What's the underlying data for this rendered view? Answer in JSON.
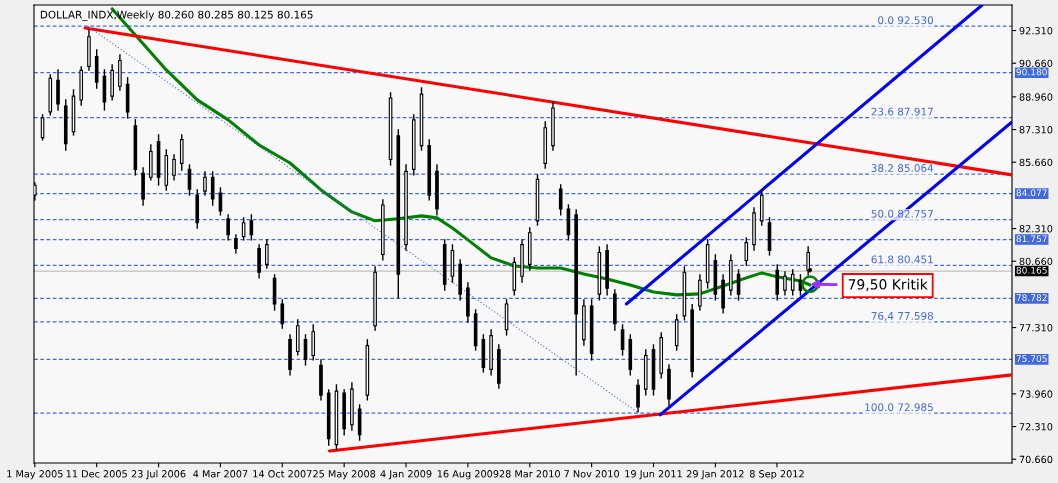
{
  "chart_data": {
    "type": "candlestick",
    "title": "DOLLAR_INDX,Weekly 80.260 80.285 80.125 80.165",
    "x": [
      "2005-05-01",
      "2005-05-29",
      "2005-06-26",
      "2005-07-24",
      "2005-08-21",
      "2005-09-18",
      "2005-10-16",
      "2005-11-13",
      "2005-12-11",
      "2006-01-08",
      "2006-02-05",
      "2006-03-05",
      "2006-04-02",
      "2006-04-30",
      "2006-05-28",
      "2006-06-25",
      "2006-07-23",
      "2006-08-20",
      "2006-09-17",
      "2006-10-15",
      "2006-11-12",
      "2006-12-10",
      "2007-01-07",
      "2007-02-04",
      "2007-03-04",
      "2007-04-01",
      "2007-04-29",
      "2007-05-27",
      "2007-06-24",
      "2007-07-22",
      "2007-08-19",
      "2007-09-16",
      "2007-10-14",
      "2007-11-11",
      "2007-12-09",
      "2008-01-06",
      "2008-02-03",
      "2008-03-02",
      "2008-03-30",
      "2008-04-27",
      "2008-05-25",
      "2008-06-22",
      "2008-07-20",
      "2008-08-17",
      "2008-09-14",
      "2008-10-12",
      "2008-11-09",
      "2008-12-07",
      "2009-01-04",
      "2009-02-01",
      "2009-03-01",
      "2009-03-29",
      "2009-04-26",
      "2009-05-24",
      "2009-06-21",
      "2009-07-19",
      "2009-08-16",
      "2009-09-13",
      "2009-10-11",
      "2009-11-08",
      "2009-12-06",
      "2010-01-03",
      "2010-01-31",
      "2010-02-28",
      "2010-03-28",
      "2010-04-25",
      "2010-05-23",
      "2010-06-20",
      "2010-07-18",
      "2010-08-15",
      "2010-09-12",
      "2010-10-10",
      "2010-11-07",
      "2010-12-05",
      "2011-01-02",
      "2011-01-30",
      "2011-02-27",
      "2011-03-27",
      "2011-04-24",
      "2011-05-22",
      "2011-06-19",
      "2011-07-17",
      "2011-08-14",
      "2011-09-11",
      "2011-10-09",
      "2011-11-06",
      "2011-12-04",
      "2012-01-01",
      "2012-01-29",
      "2012-02-26",
      "2012-03-25",
      "2012-04-22",
      "2012-05-20",
      "2012-06-17",
      "2012-07-15",
      "2012-08-12",
      "2012-09-09",
      "2012-10-07",
      "2012-11-04",
      "2012-12-02",
      "2012-12-30",
      "2013-01-06"
    ],
    "ohlc": [
      [
        84.0,
        84.61,
        83.76,
        84.5
      ],
      [
        86.9,
        88.05,
        86.79,
        87.9
      ],
      [
        88.2,
        90.07,
        88.05,
        89.9
      ],
      [
        89.8,
        90.32,
        88.3,
        88.6
      ],
      [
        88.5,
        88.81,
        86.28,
        86.6
      ],
      [
        87.2,
        89.31,
        87.04,
        89.0
      ],
      [
        88.8,
        90.47,
        88.55,
        90.3
      ],
      [
        90.5,
        92.34,
        90.32,
        92.0
      ],
      [
        91.0,
        91.33,
        89.41,
        89.7
      ],
      [
        90.0,
        90.32,
        88.3,
        88.7
      ],
      [
        89.0,
        90.57,
        88.81,
        90.3
      ],
      [
        89.5,
        91.08,
        89.31,
        90.8
      ],
      [
        89.6,
        89.92,
        87.9,
        88.2
      ],
      [
        87.5,
        87.8,
        85.02,
        85.3
      ],
      [
        85.1,
        85.37,
        83.5,
        83.8
      ],
      [
        84.9,
        86.53,
        84.77,
        86.2
      ],
      [
        86.7,
        87.04,
        84.51,
        84.9
      ],
      [
        84.5,
        86.28,
        84.26,
        86.0
      ],
      [
        85.0,
        86.03,
        84.77,
        85.8
      ],
      [
        85.6,
        87.04,
        85.27,
        86.8
      ],
      [
        85.3,
        85.52,
        84.01,
        84.3
      ],
      [
        84.0,
        84.26,
        82.34,
        82.6
      ],
      [
        84.2,
        85.17,
        84.01,
        84.9
      ],
      [
        84.9,
        85.17,
        83.5,
        83.8
      ],
      [
        84.1,
        84.36,
        83.0,
        83.2
      ],
      [
        82.8,
        83.0,
        81.74,
        82.0
      ],
      [
        81.8,
        81.99,
        81.08,
        81.3
      ],
      [
        81.9,
        82.85,
        81.74,
        82.6
      ],
      [
        82.7,
        83.0,
        81.74,
        82.0
      ],
      [
        81.3,
        81.48,
        79.82,
        80.1
      ],
      [
        80.5,
        81.74,
        80.32,
        81.5
      ],
      [
        79.8,
        79.97,
        78.2,
        78.5
      ],
      [
        78.5,
        78.71,
        77.29,
        77.5
      ],
      [
        76.7,
        76.94,
        74.92,
        75.2
      ],
      [
        76.1,
        77.7,
        75.93,
        77.4
      ],
      [
        76.7,
        76.94,
        75.42,
        75.7
      ],
      [
        75.9,
        77.44,
        75.68,
        77.1
      ],
      [
        75.4,
        75.68,
        73.66,
        73.9
      ],
      [
        74.0,
        74.16,
        71.38,
        71.7
      ],
      [
        71.4,
        74.41,
        71.13,
        74.1
      ],
      [
        74.0,
        74.16,
        71.89,
        72.2
      ],
      [
        72.4,
        74.51,
        72.14,
        74.2
      ],
      [
        73.2,
        73.4,
        71.63,
        71.9
      ],
      [
        73.9,
        76.69,
        73.66,
        76.4
      ],
      [
        77.4,
        80.37,
        77.19,
        80.1
      ],
      [
        81.0,
        83.76,
        80.73,
        83.5
      ],
      [
        85.8,
        89.16,
        85.52,
        88.9
      ],
      [
        87.0,
        87.29,
        78.81,
        80.0
      ],
      [
        81.5,
        85.52,
        81.23,
        85.2
      ],
      [
        85.3,
        88.05,
        85.02,
        87.8
      ],
      [
        86.5,
        89.41,
        86.28,
        89.1
      ],
      [
        86.5,
        86.79,
        83.76,
        84.0
      ],
      [
        85.2,
        85.52,
        83.0,
        83.3
      ],
      [
        81.5,
        81.74,
        79.21,
        79.5
      ],
      [
        79.9,
        81.48,
        79.61,
        81.2
      ],
      [
        80.5,
        80.73,
        78.71,
        79.0
      ],
      [
        79.3,
        79.56,
        77.59,
        77.9
      ],
      [
        78.0,
        78.2,
        76.18,
        76.4
      ],
      [
        76.7,
        76.94,
        75.07,
        75.3
      ],
      [
        75.2,
        77.19,
        74.92,
        76.9
      ],
      [
        76.2,
        76.43,
        74.26,
        74.5
      ],
      [
        77.2,
        78.71,
        76.94,
        78.5
      ],
      [
        79.2,
        80.83,
        78.96,
        80.6
      ],
      [
        79.9,
        81.74,
        79.61,
        81.5
      ],
      [
        80.5,
        82.34,
        80.22,
        82.1
      ],
      [
        82.7,
        85.02,
        82.49,
        84.8
      ],
      [
        85.6,
        87.7,
        85.37,
        87.4
      ],
      [
        86.5,
        88.71,
        86.28,
        88.4
      ],
      [
        84.3,
        84.51,
        83.0,
        83.3
      ],
      [
        83.3,
        83.5,
        81.74,
        82.0
      ],
      [
        83.0,
        83.25,
        74.92,
        78.0
      ],
      [
        76.7,
        78.71,
        76.43,
        78.4
      ],
      [
        78.4,
        78.71,
        75.68,
        76.0
      ],
      [
        79.0,
        81.38,
        78.71,
        81.1
      ],
      [
        81.2,
        81.48,
        78.96,
        79.3
      ],
      [
        79.0,
        79.21,
        77.19,
        77.5
      ],
      [
        77.2,
        77.44,
        75.93,
        76.2
      ],
      [
        76.7,
        76.94,
        74.92,
        75.2
      ],
      [
        74.4,
        74.67,
        73.05,
        73.3
      ],
      [
        74.2,
        76.18,
        73.91,
        75.9
      ],
      [
        76.2,
        76.43,
        73.91,
        74.2
      ],
      [
        75.0,
        77.04,
        74.77,
        76.8
      ],
      [
        75.2,
        75.42,
        73.4,
        73.7
      ],
      [
        76.4,
        77.95,
        76.18,
        77.7
      ],
      [
        77.9,
        80.37,
        77.7,
        80.1
      ],
      [
        78.2,
        78.46,
        74.82,
        75.1
      ],
      [
        78.4,
        79.97,
        78.2,
        79.7
      ],
      [
        79.6,
        81.74,
        79.31,
        81.5
      ],
      [
        80.7,
        80.98,
        78.71,
        79.0
      ],
      [
        79.7,
        79.97,
        78.05,
        78.3
      ],
      [
        79.2,
        80.98,
        78.96,
        80.7
      ],
      [
        80.0,
        80.22,
        78.71,
        79.0
      ],
      [
        80.7,
        81.84,
        80.47,
        81.6
      ],
      [
        81.5,
        83.35,
        81.23,
        83.1
      ],
      [
        82.7,
        84.26,
        82.49,
        84.0
      ],
      [
        82.6,
        82.85,
        80.98,
        81.2
      ],
      [
        80.2,
        80.47,
        78.71,
        79.0
      ],
      [
        79.2,
        80.12,
        78.96,
        79.9
      ],
      [
        79.2,
        80.22,
        78.96,
        80.0
      ],
      [
        79.7,
        79.97,
        78.96,
        79.2
      ],
      [
        80.2,
        81.38,
        79.97,
        81.1
      ],
      [
        80.26,
        80.285,
        80.125,
        80.165
      ]
    ],
    "series": [
      {
        "type": "line",
        "color": "#008000",
        "line_style": "solid",
        "x": [
          "2006-02-05",
          "2006-04-30",
          "2006-08-20",
          "2006-12-10",
          "2007-04-01",
          "2007-07-22",
          "2007-11-11",
          "2008-03-02",
          "2008-06-22",
          "2008-09-14",
          "2008-12-07",
          "2009-03-01",
          "2009-04-26",
          "2009-06-21",
          "2009-08-16",
          "2009-11-08",
          "2010-01-31",
          "2010-04-25",
          "2010-07-18",
          "2010-10-10",
          "2011-01-02",
          "2011-03-27",
          "2011-06-19",
          "2011-09-11",
          "2011-12-04",
          "2012-02-26",
          "2012-05-20",
          "2012-07-15",
          "2012-09-09",
          "2012-12-02",
          "2013-01-06"
        ],
        "values": [
          93.4,
          92.09,
          90.32,
          88.81,
          87.8,
          86.53,
          85.62,
          84.26,
          83.15,
          82.7,
          82.8,
          82.95,
          82.85,
          82.34,
          81.74,
          80.83,
          80.42,
          80.32,
          80.32,
          80.02,
          79.76,
          79.46,
          79.11,
          78.96,
          79.01,
          79.41,
          79.82,
          80.07,
          79.87,
          79.66,
          79.46
        ]
      },
      {
        "type": "line",
        "color": "#ff0000",
        "line_style": "solid",
        "x": [
          "2005-10-30",
          "2015-01-07"
        ],
        "values": [
          92.44,
          85.02
        ]
      },
      {
        "type": "line",
        "color": "#ff0000",
        "line_style": "solid",
        "x": [
          "2008-04-02",
          "2015-01-07"
        ],
        "values": [
          71.08,
          74.92
        ]
      },
      {
        "type": "line",
        "color": "#0000ff",
        "line_style": "solid",
        "x": [
          "2011-07-13",
          "2015-01-07"
        ],
        "values": [
          72.9,
          87.69
        ]
      },
      {
        "type": "line",
        "color": "#0000ff",
        "line_style": "solid",
        "x": [
          "2011-03-13",
          "2014-09-21"
        ],
        "values": [
          78.5,
          93.6
        ]
      },
      {
        "type": "line",
        "color": "#4169e1",
        "line_style": "dotted",
        "x": [
          "2005-11-09",
          "2011-04-27"
        ],
        "values": [
          92.53,
          72.985
        ]
      }
    ],
    "ref_lines": [
      {
        "axis": "y",
        "value": 92.53,
        "label": "0.0 92.530",
        "color": "#4169e1",
        "line_style": "dashed"
      },
      {
        "axis": "y",
        "value": 87.917,
        "label": "23.6 87.917",
        "color": "#4169e1",
        "line_style": "dashed"
      },
      {
        "axis": "y",
        "value": 85.064,
        "label": "38.2 85.064",
        "color": "#4169e1",
        "line_style": "dashed"
      },
      {
        "axis": "y",
        "value": 82.757,
        "label": "50.0 82.757",
        "color": "#4169e1",
        "line_style": "dashed"
      },
      {
        "axis": "y",
        "value": 80.451,
        "label": "61.8 80.451",
        "color": "#4169e1",
        "line_style": "dashed"
      },
      {
        "axis": "y",
        "value": 77.598,
        "label": "76,4 77.598",
        "color": "#4169e1",
        "line_style": "dashed"
      },
      {
        "axis": "y",
        "value": 72.985,
        "label": "100.0 72.985",
        "color": "#4169e1",
        "line_style": "dashed"
      },
      {
        "axis": "y",
        "value": 90.18,
        "label": "90.180",
        "color": "#4169e1",
        "line_style": "dashed"
      },
      {
        "axis": "y",
        "value": 84.077,
        "label": "84.077",
        "color": "#4169e1",
        "line_style": "dashed"
      },
      {
        "axis": "y",
        "value": 81.757,
        "label": "81.757",
        "color": "#4169e1",
        "line_style": "dashed"
      },
      {
        "axis": "y",
        "value": 78.782,
        "label": "78.782",
        "color": "#4169e1",
        "line_style": "dashed"
      },
      {
        "axis": "y",
        "value": 75.705,
        "label": "75.705",
        "color": "#4169e1",
        "line_style": "dashed"
      },
      {
        "axis": "y",
        "value": 80.165,
        "label": "80.165",
        "color": "#c0c0c0",
        "line_style": "solid"
      }
    ],
    "annotations": [
      {
        "text": "79,50 Kritik",
        "x": "2013-01-06",
        "y": 79.5
      }
    ],
    "xlim": [
      "2005-04-28",
      "2015-01-07"
    ],
    "xticks": [
      {
        "value": "2005-05-01",
        "label": "1 May 2005"
      },
      {
        "value": "2005-12-11",
        "label": "11 Dec 2005"
      },
      {
        "value": "2006-07-23",
        "label": "23 Jul 2006"
      },
      {
        "value": "2007-03-04",
        "label": "4 Mar 2007"
      },
      {
        "value": "2007-10-14",
        "label": "14 Oct 2007"
      },
      {
        "value": "2008-05-25",
        "label": "25 May 2008"
      },
      {
        "value": "2009-01-04",
        "label": "4 Jan 2009"
      },
      {
        "value": "2009-08-16",
        "label": "16 Aug 2009"
      },
      {
        "value": "2010-03-28",
        "label": "28 Mar 2010"
      },
      {
        "value": "2010-11-07",
        "label": "7 Nov 2010"
      },
      {
        "value": "2011-06-19",
        "label": "19 Jun 2011"
      },
      {
        "value": "2012-01-29",
        "label": "29 Jan 2012"
      },
      {
        "value": "2012-09-08",
        "label": "8 Sep 2012"
      }
    ],
    "ylim": [
      70.47,
      93.6
    ],
    "yticks": [
      {
        "value": 70.66,
        "label": "70.660"
      },
      {
        "value": 72.31,
        "label": "72.310"
      },
      {
        "value": 73.96,
        "label": "73.960"
      },
      {
        "value": 77.31,
        "label": "77.310"
      },
      {
        "value": 80.66,
        "label": "80.660"
      },
      {
        "value": 82.31,
        "label": "82.310"
      },
      {
        "value": 85.66,
        "label": "85.660"
      },
      {
        "value": 87.31,
        "label": "87.310"
      },
      {
        "value": 88.96,
        "label": "88.960"
      },
      {
        "value": 90.66,
        "label": "90.660"
      },
      {
        "value": 92.31,
        "label": "92.310"
      }
    ]
  }
}
